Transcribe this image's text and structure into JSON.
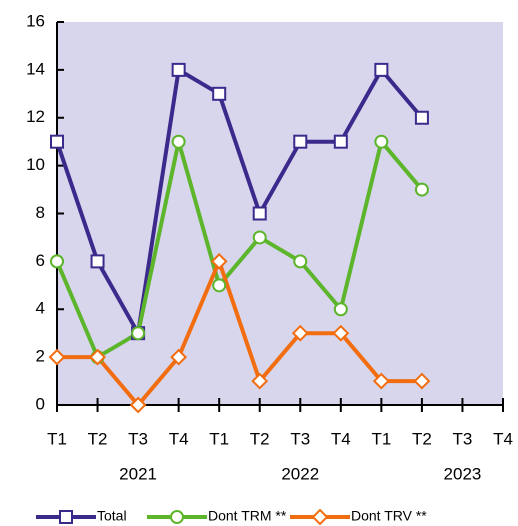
{
  "chart_data": {
    "type": "line",
    "categories": [
      "T1",
      "T2",
      "T3",
      "T4",
      "T1",
      "T2",
      "T3",
      "T4",
      "T1",
      "T2",
      "T3",
      "T4"
    ],
    "groups": [
      "2021",
      "2022",
      "2023"
    ],
    "series": [
      {
        "name": "Total",
        "color": "#3b2a8c",
        "marker": "square",
        "values": [
          11,
          6,
          3,
          14,
          13,
          8,
          11,
          11,
          14,
          12,
          null,
          null
        ]
      },
      {
        "name": "Dont TRM **",
        "color": "#5cb52b",
        "marker": "circle",
        "values": [
          6,
          2,
          3,
          11,
          5,
          7,
          6,
          4,
          11,
          9,
          null,
          null
        ]
      },
      {
        "name": "Dont TRV **",
        "color": "#f26d0f",
        "marker": "diamond",
        "values": [
          2,
          2,
          0,
          2,
          6,
          1,
          3,
          3,
          1,
          1,
          null,
          null
        ]
      }
    ],
    "ylim": [
      0,
      16
    ],
    "yticks": [
      0,
      2,
      4,
      6,
      8,
      10,
      12,
      14,
      16
    ],
    "plot_background": "#d8d6ec",
    "grid": false,
    "legend": "bottom"
  }
}
